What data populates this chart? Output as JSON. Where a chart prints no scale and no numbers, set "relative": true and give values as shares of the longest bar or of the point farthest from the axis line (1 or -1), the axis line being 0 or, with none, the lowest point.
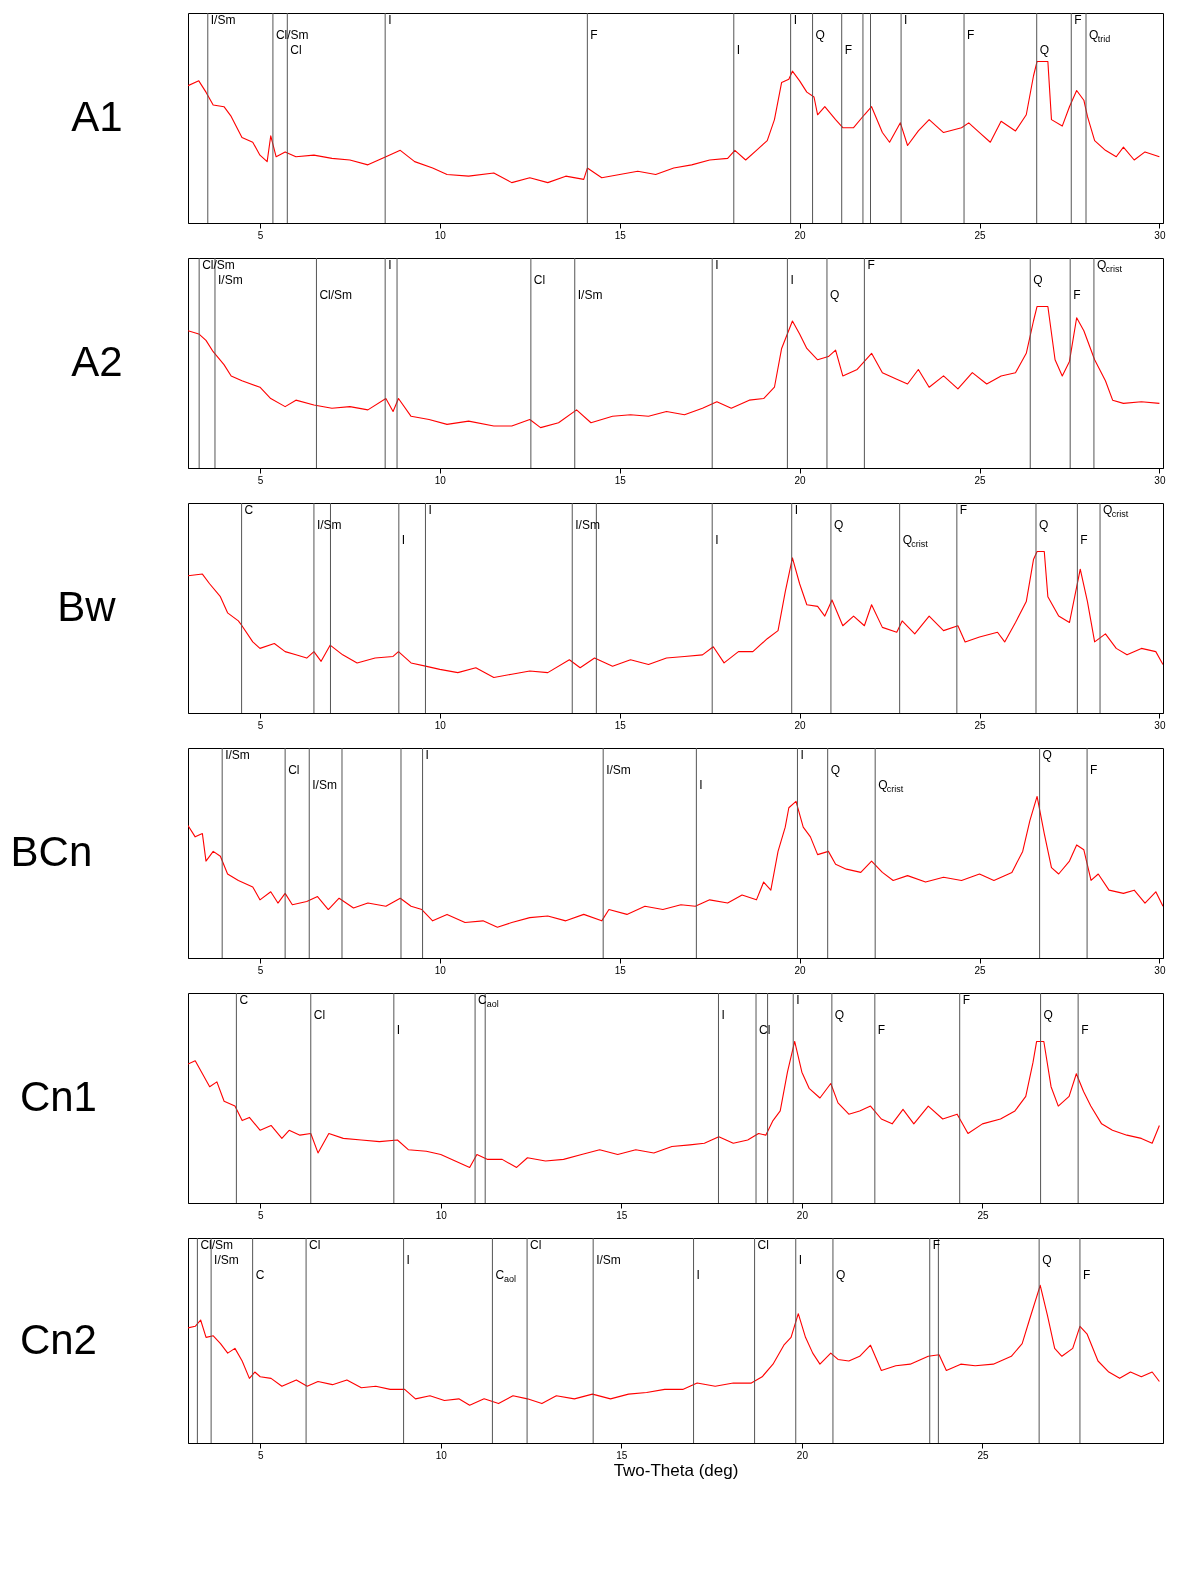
{
  "chart_data": [
    {
      "type": "line",
      "title": "A1",
      "relative": true,
      "xlim": [
        3,
        30.1
      ],
      "xticks": [
        5,
        10,
        15,
        20,
        25,
        30
      ],
      "grid": false,
      "x": [
        3.0,
        3.3,
        3.5,
        3.7,
        4.0,
        4.2,
        4.5,
        4.8,
        5.0,
        5.2,
        5.3,
        5.45,
        5.7,
        6.0,
        6.5,
        7.0,
        7.5,
        8.0,
        8.5,
        8.9,
        9.3,
        9.8,
        10.2,
        10.8,
        11.5,
        12.0,
        12.5,
        13.0,
        13.5,
        14.0,
        14.1,
        14.5,
        15.0,
        15.5,
        16.0,
        16.5,
        17.0,
        17.5,
        18.0,
        18.2,
        18.5,
        18.8,
        19.1,
        19.3,
        19.5,
        19.7,
        19.8,
        20.0,
        20.2,
        20.4,
        20.5,
        20.7,
        21.0,
        21.2,
        21.5,
        21.8,
        22.0,
        22.3,
        22.5,
        22.8,
        23.0,
        23.3,
        23.6,
        24.0,
        24.5,
        24.7,
        25.0,
        25.3,
        25.6,
        26.0,
        26.3,
        26.5,
        26.6,
        26.9,
        27.0,
        27.3,
        27.5,
        27.7,
        27.9,
        28.0,
        28.2,
        28.5,
        28.8,
        29.0,
        29.3,
        29.6,
        30.0
      ],
      "series": [
        {
          "color": "#ff0000",
          "values": [
            0.85,
            0.88,
            0.81,
            0.73,
            0.72,
            0.66,
            0.53,
            0.5,
            0.42,
            0.38,
            0.54,
            0.41,
            0.44,
            0.41,
            0.42,
            0.4,
            0.39,
            0.36,
            0.41,
            0.45,
            0.38,
            0.34,
            0.3,
            0.29,
            0.31,
            0.25,
            0.28,
            0.25,
            0.29,
            0.27,
            0.34,
            0.28,
            0.3,
            0.32,
            0.3,
            0.34,
            0.36,
            0.39,
            0.4,
            0.45,
            0.39,
            0.45,
            0.51,
            0.64,
            0.87,
            0.89,
            0.94,
            0.88,
            0.81,
            0.78,
            0.67,
            0.72,
            0.64,
            0.59,
            0.59,
            0.67,
            0.72,
            0.56,
            0.5,
            0.62,
            0.48,
            0.57,
            0.64,
            0.56,
            0.59,
            0.62,
            0.56,
            0.5,
            0.63,
            0.57,
            0.67,
            0.91,
            1,
            1,
            0.64,
            0.6,
            0.72,
            0.82,
            0.76,
            0.66,
            0.51,
            0.45,
            0.41,
            0.47,
            0.39,
            0.44,
            0.41
          ]
        }
      ],
      "ref_lines": [
        {
          "axis": "x",
          "value": 3.55,
          "label": "I/Sm"
        },
        {
          "axis": "x",
          "value": 5.36,
          "label": "Cl/Sm"
        },
        {
          "axis": "x",
          "value": 5.76,
          "label": "Cl"
        },
        {
          "axis": "x",
          "value": 8.48,
          "label": "I"
        },
        {
          "axis": "x",
          "value": 14.1,
          "label": "F"
        },
        {
          "axis": "x",
          "value": 18.17,
          "label": "I"
        },
        {
          "axis": "x",
          "value": 19.75,
          "label": "I"
        },
        {
          "axis": "x",
          "value": 20.36,
          "label": "Q"
        },
        {
          "axis": "x",
          "value": 21.17,
          "label": "F"
        },
        {
          "axis": "x",
          "value": 21.76,
          "label": null
        },
        {
          "axis": "x",
          "value": 21.97,
          "label": null
        },
        {
          "axis": "x",
          "value": 22.82,
          "label": "I"
        },
        {
          "axis": "x",
          "value": 24.57,
          "label": "F"
        },
        {
          "axis": "x",
          "value": 26.59,
          "label": "Q"
        },
        {
          "axis": "x",
          "value": 27.55,
          "label": "F"
        },
        {
          "axis": "x",
          "value": 27.96,
          "label": "Q$_{trid}$"
        }
      ]
    },
    {
      "type": "line",
      "title": "A2",
      "relative": true,
      "xlim": [
        3,
        30.1
      ],
      "xticks": [
        5,
        10,
        15,
        20,
        25,
        30
      ],
      "grid": false,
      "x": [
        3.0,
        3.3,
        3.5,
        3.7,
        4.0,
        4.2,
        4.5,
        5.0,
        5.3,
        5.7,
        6.0,
        6.5,
        7.0,
        7.5,
        8.0,
        8.5,
        8.7,
        8.85,
        9.2,
        9.7,
        10.2,
        10.8,
        11.5,
        12.0,
        12.5,
        12.8,
        13.3,
        13.8,
        14.2,
        14.8,
        15.3,
        15.8,
        16.3,
        16.8,
        17.3,
        17.7,
        18.1,
        18.6,
        19.0,
        19.3,
        19.5,
        19.8,
        20.0,
        20.2,
        20.5,
        20.8,
        21.0,
        21.2,
        21.6,
        22.0,
        22.3,
        22.7,
        23.0,
        23.3,
        23.6,
        24.0,
        24.4,
        24.8,
        25.2,
        25.6,
        26.0,
        26.3,
        26.5,
        26.6,
        26.9,
        27.1,
        27.3,
        27.5,
        27.7,
        27.9,
        28.2,
        28.5,
        28.7,
        29.0,
        29.5,
        30.0
      ],
      "series": [
        {
          "color": "#ff0000",
          "values": [
            0.85,
            0.83,
            0.79,
            0.72,
            0.64,
            0.57,
            0.54,
            0.5,
            0.43,
            0.38,
            0.42,
            0.39,
            0.37,
            0.38,
            0.36,
            0.43,
            0.35,
            0.43,
            0.32,
            0.3,
            0.27,
            0.29,
            0.26,
            0.26,
            0.3,
            0.25,
            0.28,
            0.36,
            0.28,
            0.32,
            0.33,
            0.32,
            0.35,
            0.33,
            0.37,
            0.41,
            0.37,
            0.42,
            0.43,
            0.5,
            0.74,
            0.91,
            0.83,
            0.74,
            0.67,
            0.69,
            0.73,
            0.57,
            0.61,
            0.71,
            0.59,
            0.55,
            0.52,
            0.61,
            0.5,
            0.57,
            0.49,
            0.59,
            0.52,
            0.57,
            0.59,
            0.71,
            0.91,
            1,
            1,
            0.67,
            0.57,
            0.66,
            0.93,
            0.85,
            0.67,
            0.54,
            0.42,
            0.4,
            0.41,
            0.4
          ]
        }
      ],
      "ref_lines": [
        {
          "axis": "x",
          "value": 3.31,
          "label": "Cl/Sm"
        },
        {
          "axis": "x",
          "value": 3.75,
          "label": "I/Sm"
        },
        {
          "axis": "x",
          "value": 6.57,
          "label": "Cl/Sm"
        },
        {
          "axis": "x",
          "value": 8.48,
          "label": "I"
        },
        {
          "axis": "x",
          "value": 8.81,
          "label": null
        },
        {
          "axis": "x",
          "value": 12.53,
          "label": "Cl"
        },
        {
          "axis": "x",
          "value": 13.75,
          "label": "I/Sm"
        },
        {
          "axis": "x",
          "value": 17.57,
          "label": "I"
        },
        {
          "axis": "x",
          "value": 19.66,
          "label": "I"
        },
        {
          "axis": "x",
          "value": 20.76,
          "label": "Q"
        },
        {
          "axis": "x",
          "value": 21.8,
          "label": "F"
        },
        {
          "axis": "x",
          "value": 26.41,
          "label": "Q"
        },
        {
          "axis": "x",
          "value": 27.52,
          "label": "F"
        },
        {
          "axis": "x",
          "value": 28.18,
          "label": "Q$_{crist}$"
        }
      ]
    },
    {
      "type": "line",
      "title": "Bw",
      "relative": true,
      "xlim": [
        3,
        30.1
      ],
      "xticks": [
        5,
        10,
        15,
        20,
        25,
        30
      ],
      "grid": false,
      "x": [
        3.0,
        3.4,
        3.6,
        3.9,
        4.1,
        4.4,
        4.5,
        4.8,
        5.0,
        5.4,
        5.7,
        6.0,
        6.3,
        6.5,
        6.7,
        6.95,
        7.3,
        7.7,
        8.2,
        8.7,
        8.85,
        9.2,
        9.6,
        10.0,
        10.5,
        11.0,
        11.5,
        12.0,
        12.5,
        13.0,
        13.6,
        13.9,
        14.3,
        14.8,
        15.3,
        15.8,
        16.3,
        16.8,
        17.3,
        17.6,
        17.9,
        18.3,
        18.7,
        19.1,
        19.4,
        19.6,
        19.8,
        20.0,
        20.2,
        20.5,
        20.7,
        20.9,
        21.2,
        21.5,
        21.8,
        22.0,
        22.3,
        22.7,
        22.85,
        23.2,
        23.6,
        24.0,
        24.4,
        24.6,
        25.0,
        25.5,
        25.7,
        26.0,
        26.3,
        26.5,
        26.6,
        26.8,
        26.9,
        27.2,
        27.5,
        27.8,
        28.0,
        28.2,
        28.5,
        28.8,
        29.1,
        29.5,
        29.9,
        30.1
      ],
      "series": [
        {
          "color": "#ff0000",
          "values": [
            0.85,
            0.86,
            0.8,
            0.72,
            0.62,
            0.57,
            0.54,
            0.44,
            0.4,
            0.43,
            0.38,
            0.36,
            0.34,
            0.38,
            0.32,
            0.42,
            0.36,
            0.31,
            0.34,
            0.35,
            0.38,
            0.31,
            0.29,
            0.27,
            0.25,
            0.28,
            0.22,
            0.24,
            0.26,
            0.25,
            0.33,
            0.28,
            0.34,
            0.29,
            0.33,
            0.3,
            0.34,
            0.35,
            0.36,
            0.41,
            0.31,
            0.38,
            0.38,
            0.46,
            0.51,
            0.75,
            0.96,
            0.8,
            0.67,
            0.66,
            0.6,
            0.7,
            0.54,
            0.6,
            0.54,
            0.67,
            0.53,
            0.5,
            0.57,
            0.49,
            0.6,
            0.51,
            0.54,
            0.44,
            0.47,
            0.5,
            0.44,
            0.56,
            0.69,
            0.95,
            1,
            1,
            0.72,
            0.6,
            0.56,
            0.89,
            0.69,
            0.44,
            0.49,
            0.4,
            0.36,
            0.4,
            0.38,
            0.3
          ]
        }
      ],
      "ref_lines": [
        {
          "axis": "x",
          "value": 4.49,
          "label": "C"
        },
        {
          "axis": "x",
          "value": 6.5,
          "label": "I/Sm"
        },
        {
          "axis": "x",
          "value": 6.96,
          "label": null
        },
        {
          "axis": "x",
          "value": 8.86,
          "label": "I"
        },
        {
          "axis": "x",
          "value": 9.6,
          "label": "I"
        },
        {
          "axis": "x",
          "value": 13.68,
          "label": "I/Sm"
        },
        {
          "axis": "x",
          "value": 14.35,
          "label": null
        },
        {
          "axis": "x",
          "value": 17.57,
          "label": "I"
        },
        {
          "axis": "x",
          "value": 19.78,
          "label": "I"
        },
        {
          "axis": "x",
          "value": 20.87,
          "label": "Q"
        },
        {
          "axis": "x",
          "value": 22.78,
          "label": "Q$_{crist}$"
        },
        {
          "axis": "x",
          "value": 24.37,
          "label": "F"
        },
        {
          "axis": "x",
          "value": 26.57,
          "label": "Q"
        },
        {
          "axis": "x",
          "value": 27.72,
          "label": "F"
        },
        {
          "axis": "x",
          "value": 28.35,
          "label": "Q$_{crist}$"
        }
      ]
    },
    {
      "type": "line",
      "title": "BCn",
      "relative": true,
      "xlim": [
        3,
        30.1
      ],
      "xticks": [
        5,
        10,
        15,
        20,
        25,
        30
      ],
      "grid": false,
      "x": [
        3.0,
        3.2,
        3.4,
        3.5,
        3.7,
        3.9,
        4.1,
        4.4,
        4.8,
        5.0,
        5.3,
        5.5,
        5.7,
        5.9,
        6.3,
        6.6,
        6.9,
        7.2,
        7.6,
        8.0,
        8.5,
        8.9,
        9.2,
        9.5,
        9.8,
        10.2,
        10.7,
        11.2,
        11.6,
        12.0,
        12.5,
        13.0,
        13.5,
        14.0,
        14.5,
        14.7,
        15.2,
        15.7,
        16.2,
        16.7,
        17.1,
        17.5,
        18.0,
        18.4,
        18.8,
        19.0,
        19.2,
        19.4,
        19.6,
        19.7,
        19.9,
        20.1,
        20.3,
        20.5,
        20.8,
        21.0,
        21.3,
        21.7,
        22.0,
        22.3,
        22.6,
        23.0,
        23.5,
        24.0,
        24.5,
        25.0,
        25.4,
        25.9,
        26.2,
        26.4,
        26.6,
        26.8,
        27.0,
        27.2,
        27.5,
        27.7,
        27.9,
        28.1,
        28.3,
        28.6,
        29.0,
        29.3,
        29.6,
        29.9,
        30.1
      ],
      "series": [
        {
          "color": "#ff0000",
          "values": [
            0.82,
            0.75,
            0.77,
            0.6,
            0.66,
            0.63,
            0.52,
            0.48,
            0.44,
            0.36,
            0.41,
            0.34,
            0.4,
            0.33,
            0.35,
            0.38,
            0.3,
            0.37,
            0.31,
            0.34,
            0.32,
            0.37,
            0.32,
            0.3,
            0.23,
            0.27,
            0.22,
            0.23,
            0.19,
            0.22,
            0.25,
            0.26,
            0.23,
            0.27,
            0.23,
            0.3,
            0.27,
            0.32,
            0.3,
            0.33,
            0.32,
            0.36,
            0.34,
            0.39,
            0.36,
            0.47,
            0.42,
            0.66,
            0.81,
            0.93,
            0.97,
            0.81,
            0.75,
            0.64,
            0.66,
            0.58,
            0.55,
            0.53,
            0.6,
            0.53,
            0.48,
            0.51,
            0.47,
            0.5,
            0.48,
            0.52,
            0.48,
            0.53,
            0.66,
            0.85,
            1,
            0.77,
            0.56,
            0.52,
            0.6,
            0.7,
            0.67,
            0.48,
            0.52,
            0.42,
            0.4,
            0.42,
            0.34,
            0.41,
            0.32
          ]
        }
      ],
      "ref_lines": [
        {
          "axis": "x",
          "value": 3.95,
          "label": "I/Sm"
        },
        {
          "axis": "x",
          "value": 5.7,
          "label": "Cl"
        },
        {
          "axis": "x",
          "value": 6.37,
          "label": "I/Sm"
        },
        {
          "axis": "x",
          "value": 7.28,
          "label": null
        },
        {
          "axis": "x",
          "value": 8.92,
          "label": null
        },
        {
          "axis": "x",
          "value": 9.52,
          "label": "I"
        },
        {
          "axis": "x",
          "value": 14.54,
          "label": "I/Sm"
        },
        {
          "axis": "x",
          "value": 17.13,
          "label": "I"
        },
        {
          "axis": "x",
          "value": 19.94,
          "label": "I"
        },
        {
          "axis": "x",
          "value": 20.78,
          "label": "Q"
        },
        {
          "axis": "x",
          "value": 22.1,
          "label": "Q$_{crist}$"
        },
        {
          "axis": "x",
          "value": 26.67,
          "label": "Q"
        },
        {
          "axis": "x",
          "value": 27.99,
          "label": "F"
        }
      ]
    },
    {
      "type": "line",
      "title": "Cn1",
      "relative": true,
      "xlim": [
        3,
        30
      ],
      "xticks": [
        5,
        10,
        15,
        20,
        25
      ],
      "grid": false,
      "x": [
        3.0,
        3.2,
        3.4,
        3.6,
        3.8,
        4.0,
        4.3,
        4.5,
        4.7,
        5.0,
        5.3,
        5.6,
        5.8,
        6.1,
        6.4,
        6.6,
        6.9,
        7.3,
        7.8,
        8.3,
        8.8,
        9.1,
        9.6,
        10.0,
        10.4,
        10.8,
        11.0,
        11.3,
        11.7,
        12.1,
        12.4,
        12.9,
        13.4,
        13.9,
        14.4,
        14.9,
        15.4,
        15.9,
        16.4,
        16.9,
        17.3,
        17.7,
        18.1,
        18.5,
        18.8,
        19.0,
        19.2,
        19.4,
        19.6,
        19.8,
        20.0,
        20.2,
        20.5,
        20.8,
        21.0,
        21.3,
        21.6,
        21.9,
        22.2,
        22.5,
        22.8,
        23.1,
        23.5,
        23.9,
        24.3,
        24.6,
        25.0,
        25.5,
        25.9,
        26.2,
        26.4,
        26.5,
        26.7,
        26.9,
        27.1,
        27.4,
        27.6,
        27.8,
        28.0,
        28.3,
        28.6,
        29.0,
        29.4,
        29.7,
        29.9
      ],
      "series": [
        {
          "color": "#ff0000",
          "values": [
            0.86,
            0.88,
            0.8,
            0.72,
            0.75,
            0.63,
            0.6,
            0.51,
            0.53,
            0.45,
            0.48,
            0.4,
            0.45,
            0.42,
            0.43,
            0.31,
            0.43,
            0.4,
            0.39,
            0.38,
            0.39,
            0.33,
            0.32,
            0.3,
            0.26,
            0.22,
            0.3,
            0.27,
            0.27,
            0.22,
            0.28,
            0.26,
            0.27,
            0.3,
            0.33,
            0.3,
            0.33,
            0.31,
            0.35,
            0.36,
            0.37,
            0.41,
            0.37,
            0.39,
            0.43,
            0.42,
            0.51,
            0.57,
            0.81,
            1,
            0.81,
            0.71,
            0.65,
            0.74,
            0.62,
            0.55,
            0.57,
            0.6,
            0.52,
            0.49,
            0.58,
            0.49,
            0.6,
            0.52,
            0.55,
            0.43,
            0.49,
            0.52,
            0.57,
            0.66,
            0.87,
            1,
            1,
            0.72,
            0.6,
            0.66,
            0.8,
            0.69,
            0.6,
            0.49,
            0.45,
            0.42,
            0.4,
            0.37,
            0.48
          ]
        }
      ],
      "ref_lines": [
        {
          "axis": "x",
          "value": 4.34,
          "label": "C"
        },
        {
          "axis": "x",
          "value": 6.4,
          "label": "Cl"
        },
        {
          "axis": "x",
          "value": 8.7,
          "label": "I"
        },
        {
          "axis": "x",
          "value": 10.95,
          "label": "C$_{aol}$"
        },
        {
          "axis": "x",
          "value": 11.23,
          "label": null
        },
        {
          "axis": "x",
          "value": 17.69,
          "label": "I"
        },
        {
          "axis": "x",
          "value": 18.73,
          "label": "Cl"
        },
        {
          "axis": "x",
          "value": 19.05,
          "label": null
        },
        {
          "axis": "x",
          "value": 19.76,
          "label": "I"
        },
        {
          "axis": "x",
          "value": 20.83,
          "label": "Q"
        },
        {
          "axis": "x",
          "value": 22.02,
          "label": "F"
        },
        {
          "axis": "x",
          "value": 24.37,
          "label": "F"
        },
        {
          "axis": "x",
          "value": 26.61,
          "label": "Q"
        },
        {
          "axis": "x",
          "value": 27.65,
          "label": "F"
        }
      ]
    },
    {
      "type": "line",
      "title": "Cn2",
      "xlabel": "Two-Theta (deg)",
      "relative": true,
      "xlim": [
        3,
        30
      ],
      "xticks": [
        5,
        10,
        15,
        20,
        25
      ],
      "grid": false,
      "x": [
        3.0,
        3.2,
        3.35,
        3.5,
        3.7,
        3.9,
        4.1,
        4.3,
        4.5,
        4.7,
        4.85,
        5.0,
        5.3,
        5.6,
        6.0,
        6.3,
        6.6,
        7.0,
        7.4,
        7.8,
        8.2,
        8.6,
        9.0,
        9.3,
        9.7,
        10.1,
        10.5,
        10.8,
        11.2,
        11.6,
        12.0,
        12.4,
        12.8,
        13.2,
        13.7,
        14.2,
        14.7,
        15.2,
        15.7,
        16.2,
        16.7,
        17.1,
        17.6,
        18.1,
        18.6,
        18.9,
        19.2,
        19.5,
        19.7,
        19.9,
        20.1,
        20.3,
        20.5,
        20.8,
        21.0,
        21.3,
        21.6,
        21.9,
        22.2,
        22.6,
        23.0,
        23.5,
        23.8,
        24.0,
        24.4,
        24.8,
        25.3,
        25.8,
        26.1,
        26.3,
        26.6,
        26.8,
        27.0,
        27.2,
        27.5,
        27.7,
        27.9,
        28.2,
        28.5,
        28.8,
        29.1,
        29.4,
        29.7,
        29.9
      ],
      "series": [
        {
          "color": "#ff0000",
          "values": [
            0.73,
            0.74,
            0.78,
            0.67,
            0.68,
            0.63,
            0.57,
            0.6,
            0.52,
            0.41,
            0.45,
            0.42,
            0.41,
            0.36,
            0.4,
            0.36,
            0.39,
            0.37,
            0.4,
            0.35,
            0.36,
            0.34,
            0.34,
            0.28,
            0.3,
            0.27,
            0.28,
            0.24,
            0.28,
            0.25,
            0.3,
            0.28,
            0.25,
            0.3,
            0.28,
            0.31,
            0.28,
            0.31,
            0.32,
            0.34,
            0.34,
            0.38,
            0.36,
            0.38,
            0.38,
            0.42,
            0.5,
            0.62,
            0.67,
            0.82,
            0.67,
            0.57,
            0.5,
            0.57,
            0.53,
            0.52,
            0.55,
            0.62,
            0.46,
            0.49,
            0.5,
            0.55,
            0.56,
            0.46,
            0.5,
            0.49,
            0.5,
            0.55,
            0.63,
            0.78,
            1,
            0.81,
            0.6,
            0.55,
            0.6,
            0.74,
            0.69,
            0.52,
            0.45,
            0.41,
            0.45,
            0.42,
            0.45,
            0.39
          ]
        }
      ],
      "ref_lines": [
        {
          "axis": "x",
          "value": 3.26,
          "label": "Cl/Sm"
        },
        {
          "axis": "x",
          "value": 3.64,
          "label": "I/Sm"
        },
        {
          "axis": "x",
          "value": 4.79,
          "label": "C"
        },
        {
          "axis": "x",
          "value": 6.27,
          "label": "Cl"
        },
        {
          "axis": "x",
          "value": 8.97,
          "label": "I"
        },
        {
          "axis": "x",
          "value": 11.43,
          "label": "C$_{aol}$"
        },
        {
          "axis": "x",
          "value": 12.39,
          "label": "Cl"
        },
        {
          "axis": "x",
          "value": 14.22,
          "label": "I/Sm"
        },
        {
          "axis": "x",
          "value": 17.0,
          "label": "I"
        },
        {
          "axis": "x",
          "value": 18.69,
          "label": "Cl"
        },
        {
          "axis": "x",
          "value": 19.83,
          "label": "I"
        },
        {
          "axis": "x",
          "value": 20.86,
          "label": "Q"
        },
        {
          "axis": "x",
          "value": 23.54,
          "label": "F"
        },
        {
          "axis": "x",
          "value": 23.78,
          "label": null
        },
        {
          "axis": "x",
          "value": 26.57,
          "label": "Q"
        },
        {
          "axis": "x",
          "value": 27.7,
          "label": "F"
        }
      ]
    }
  ]
}
